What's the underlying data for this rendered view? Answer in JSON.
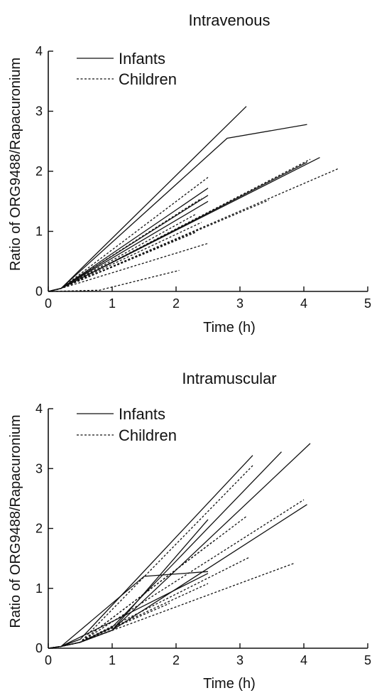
{
  "chart_data": [
    {
      "type": "line",
      "title": "Intravenous",
      "xlabel": "Time (h)",
      "ylabel": "Ratio of ORG9488/Rapacuronium",
      "xlim": [
        0,
        5
      ],
      "ylim": [
        0,
        4
      ],
      "xticks": [
        "0",
        "1",
        "2",
        "3",
        "4",
        "5"
      ],
      "yticks": [
        "0",
        "1",
        "2",
        "3",
        "4"
      ],
      "legend_position": "top-left",
      "legend": [
        {
          "label": "Infants",
          "style": "solid"
        },
        {
          "label": "Children",
          "style": "dashed"
        }
      ],
      "series": [
        {
          "group": "Infants",
          "points": [
            [
              0,
              0
            ],
            [
              0.2,
              0.05
            ],
            [
              3.1,
              3.08
            ]
          ]
        },
        {
          "group": "Infants",
          "points": [
            [
              0,
              0
            ],
            [
              0.2,
              0.05
            ],
            [
              2.8,
              2.55
            ],
            [
              4.05,
              2.78
            ]
          ]
        },
        {
          "group": "Infants",
          "points": [
            [
              0,
              0
            ],
            [
              0.2,
              0.05
            ],
            [
              2.5,
              1.72
            ]
          ]
        },
        {
          "group": "Infants",
          "points": [
            [
              0,
              0
            ],
            [
              0.2,
              0.05
            ],
            [
              2.5,
              1.6
            ]
          ]
        },
        {
          "group": "Infants",
          "points": [
            [
              0,
              0
            ],
            [
              0.2,
              0.05
            ],
            [
              2.5,
              1.5
            ]
          ]
        },
        {
          "group": "Infants",
          "points": [
            [
              0,
              0
            ],
            [
              0.2,
              0.05
            ],
            [
              4.25,
              2.23
            ]
          ]
        },
        {
          "group": "Infants",
          "points": [
            [
              0,
              0
            ],
            [
              0.2,
              0.05
            ],
            [
              4.05,
              2.15
            ]
          ]
        },
        {
          "group": "Children",
          "points": [
            [
              0,
              0
            ],
            [
              0.2,
              0.05
            ],
            [
              2.5,
              1.9
            ]
          ]
        },
        {
          "group": "Children",
          "points": [
            [
              0,
              0
            ],
            [
              0.2,
              0.05
            ],
            [
              2.4,
              1.55
            ]
          ]
        },
        {
          "group": "Children",
          "points": [
            [
              0,
              0
            ],
            [
              0.2,
              0.05
            ],
            [
              2.3,
              1.28
            ]
          ]
        },
        {
          "group": "Children",
          "points": [
            [
              0,
              0
            ],
            [
              0.2,
              0.05
            ],
            [
              2.4,
              1.15
            ]
          ]
        },
        {
          "group": "Children",
          "points": [
            [
              0,
              0
            ],
            [
              0.2,
              0.05
            ],
            [
              2.3,
              0.98
            ]
          ]
        },
        {
          "group": "Children",
          "points": [
            [
              0,
              0
            ],
            [
              0.2,
              0.05
            ],
            [
              4.1,
              2.2
            ]
          ]
        },
        {
          "group": "Children",
          "points": [
            [
              0,
              0
            ],
            [
              0.2,
              0.05
            ],
            [
              3.45,
              1.52
            ]
          ]
        },
        {
          "group": "Children",
          "points": [
            [
              0,
              0
            ],
            [
              0.2,
              0.05
            ],
            [
              4.55,
              2.05
            ]
          ]
        },
        {
          "group": "Children",
          "points": [
            [
              0,
              0
            ],
            [
              0.2,
              0.05
            ],
            [
              2.5,
              0.8
            ]
          ]
        },
        {
          "group": "Children",
          "points": [
            [
              0,
              0
            ],
            [
              0.8,
              0.02
            ],
            [
              2.05,
              0.35
            ]
          ]
        }
      ]
    },
    {
      "type": "line",
      "title": "Intramuscular",
      "xlabel": "Time (h)",
      "ylabel": "Ratio of ORG9488/Rapacuronium",
      "xlim": [
        0,
        5
      ],
      "ylim": [
        0,
        4
      ],
      "xticks": [
        "0",
        "1",
        "2",
        "3",
        "4",
        "5"
      ],
      "yticks": [
        "0",
        "1",
        "2",
        "3",
        "4"
      ],
      "legend_position": "top-left",
      "legend": [
        {
          "label": "Infants",
          "style": "solid"
        },
        {
          "label": "Children",
          "style": "dashed"
        }
      ],
      "series": [
        {
          "group": "Infants",
          "points": [
            [
              0,
              0
            ],
            [
              0.2,
              0.03
            ],
            [
              0.5,
              0.15
            ],
            [
              3.2,
              3.22
            ]
          ]
        },
        {
          "group": "Infants",
          "points": [
            [
              0,
              0
            ],
            [
              0.2,
              0.03
            ],
            [
              0.5,
              0.1
            ],
            [
              1.0,
              0.35
            ],
            [
              3.65,
              3.28
            ]
          ]
        },
        {
          "group": "Infants",
          "points": [
            [
              0,
              0
            ],
            [
              0.2,
              0.03
            ],
            [
              0.5,
              0.1
            ],
            [
              1.0,
              0.3
            ],
            [
              4.1,
              3.42
            ]
          ]
        },
        {
          "group": "Infants",
          "points": [
            [
              0,
              0
            ],
            [
              0.2,
              0.03
            ],
            [
              0.5,
              0.1
            ],
            [
              1.0,
              0.3
            ],
            [
              4.05,
              2.4
            ]
          ]
        },
        {
          "group": "Infants",
          "points": [
            [
              0,
              0
            ],
            [
              0.2,
              0.03
            ],
            [
              0.5,
              0.1
            ],
            [
              1.0,
              0.3
            ],
            [
              2.5,
              2.15
            ]
          ]
        },
        {
          "group": "Infants",
          "points": [
            [
              0,
              0
            ],
            [
              0.2,
              0.03
            ],
            [
              1.5,
              1.2
            ],
            [
              2.5,
              1.28
            ]
          ]
        },
        {
          "group": "Infants",
          "points": [
            [
              0,
              0
            ],
            [
              0.2,
              0.03
            ],
            [
              1.2,
              0.55
            ],
            [
              2.5,
              1.25
            ]
          ]
        },
        {
          "group": "Children",
          "points": [
            [
              0,
              0
            ],
            [
              0.2,
              0.03
            ],
            [
              0.5,
              0.1
            ],
            [
              3.2,
              3.05
            ]
          ]
        },
        {
          "group": "Children",
          "points": [
            [
              0,
              0
            ],
            [
              0.2,
              0.03
            ],
            [
              0.5,
              0.1
            ],
            [
              4.0,
              2.48
            ]
          ]
        },
        {
          "group": "Children",
          "points": [
            [
              0,
              0
            ],
            [
              0.2,
              0.03
            ],
            [
              0.5,
              0.1
            ],
            [
              3.1,
              2.2
            ]
          ]
        },
        {
          "group": "Children",
          "points": [
            [
              0,
              0
            ],
            [
              0.2,
              0.03
            ],
            [
              0.5,
              0.1
            ],
            [
              2.6,
              1.8
            ]
          ]
        },
        {
          "group": "Children",
          "points": [
            [
              0,
              0
            ],
            [
              0.2,
              0.03
            ],
            [
              0.5,
              0.1
            ],
            [
              3.15,
              1.52
            ]
          ]
        },
        {
          "group": "Children",
          "points": [
            [
              0,
              0
            ],
            [
              0.2,
              0.03
            ],
            [
              0.5,
              0.1
            ],
            [
              3.85,
              1.42
            ]
          ]
        },
        {
          "group": "Children",
          "points": [
            [
              0,
              0
            ],
            [
              0.2,
              0.03
            ],
            [
              0.5,
              0.1
            ],
            [
              2.5,
              1.08
            ]
          ]
        },
        {
          "group": "Children",
          "points": [
            [
              0,
              0
            ],
            [
              0.2,
              0.03
            ],
            [
              0.5,
              0.1
            ],
            [
              1.9,
              0.75
            ]
          ]
        }
      ]
    }
  ]
}
